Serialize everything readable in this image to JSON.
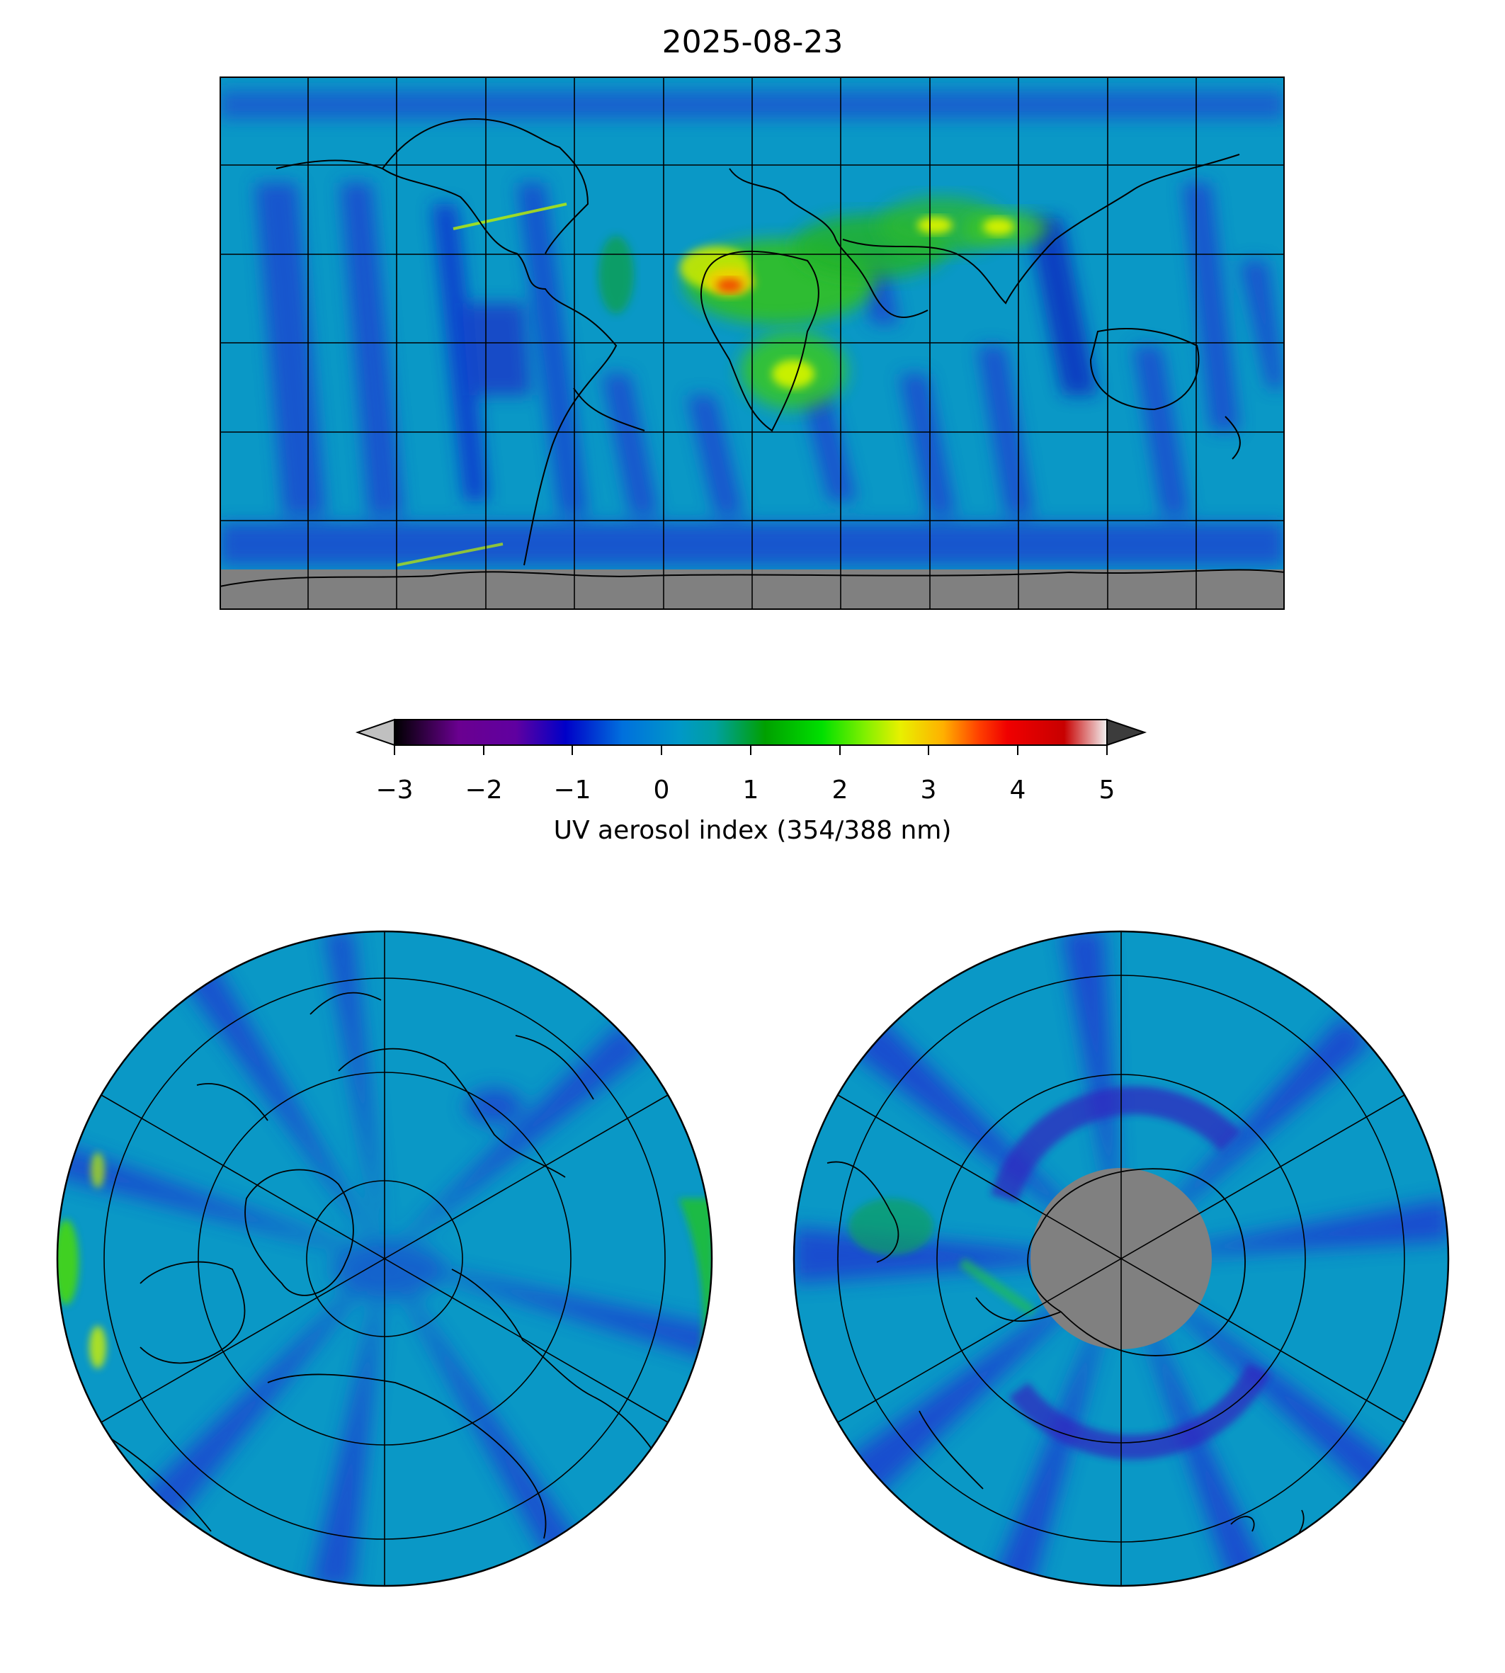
{
  "title": "2025-08-23",
  "colorbar": {
    "label": "UV aerosol index (354/388 nm)",
    "ticks": [
      "−3",
      "−2",
      "−1",
      "0",
      "1",
      "2",
      "3",
      "4",
      "5"
    ],
    "vmin": -3,
    "vmax": 5,
    "extend_low_color": "#c0c0c0",
    "extend_high_color": "#3c3c3c",
    "colors": [
      "#000000",
      "#7d008d",
      "#0000c8",
      "#0070dd",
      "#00a0a0",
      "#00a000",
      "#00f000",
      "#d8f800",
      "#ffb000",
      "#f00000",
      "#cc0000",
      "#e0e0e0"
    ]
  },
  "colors": {
    "background_field": "#0a9ac8",
    "no_data": "#808080",
    "coastline": "#000000",
    "gridline": "#000000"
  },
  "maps": {
    "world": {
      "projection": "equirectangular",
      "name": "world-map"
    },
    "north": {
      "projection": "north-polar-stereographic",
      "name": "north-polar-map"
    },
    "south": {
      "projection": "south-polar-stereographic",
      "name": "south-polar-map"
    }
  }
}
